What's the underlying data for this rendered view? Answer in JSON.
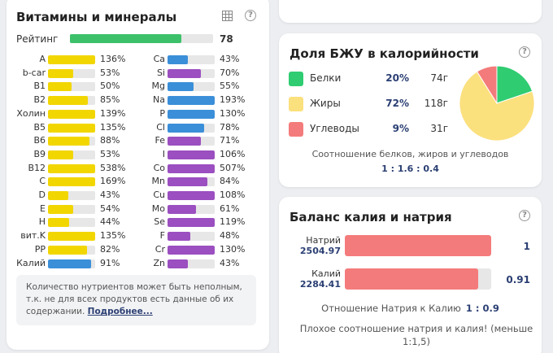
{
  "vitamins": {
    "title": "Витамины и минералы",
    "rating_label": "Рейтинг",
    "rating": 78,
    "left_col": [
      {
        "name": "A",
        "pct": "136%",
        "fill": 1.0,
        "color": "#f2d600"
      },
      {
        "name": "b-car",
        "pct": "53%",
        "fill": 0.53,
        "color": "#f2d600"
      },
      {
        "name": "B1",
        "pct": "50%",
        "fill": 0.5,
        "color": "#f2d600"
      },
      {
        "name": "B2",
        "pct": "85%",
        "fill": 0.85,
        "color": "#f2d600"
      },
      {
        "name": "Холин",
        "pct": "139%",
        "fill": 1.0,
        "color": "#f2d600"
      },
      {
        "name": "B5",
        "pct": "135%",
        "fill": 1.0,
        "color": "#f2d600"
      },
      {
        "name": "B6",
        "pct": "88%",
        "fill": 0.88,
        "color": "#f2d600"
      },
      {
        "name": "B9",
        "pct": "53%",
        "fill": 0.53,
        "color": "#f2d600"
      },
      {
        "name": "B12",
        "pct": "538%",
        "fill": 1.0,
        "color": "#f2d600"
      },
      {
        "name": "C",
        "pct": "169%",
        "fill": 1.0,
        "color": "#f2d600"
      },
      {
        "name": "D",
        "pct": "43%",
        "fill": 0.43,
        "color": "#f2d600"
      },
      {
        "name": "E",
        "pct": "54%",
        "fill": 0.54,
        "color": "#f2d600"
      },
      {
        "name": "H",
        "pct": "44%",
        "fill": 0.44,
        "color": "#f2d600"
      },
      {
        "name": "вит.K",
        "pct": "135%",
        "fill": 1.0,
        "color": "#f2d600"
      },
      {
        "name": "PP",
        "pct": "82%",
        "fill": 0.82,
        "color": "#f2d600"
      },
      {
        "name": "Калий",
        "pct": "91%",
        "fill": 0.91,
        "color": "#3b8fd9"
      }
    ],
    "right_col": [
      {
        "name": "Ca",
        "pct": "43%",
        "fill": 0.43,
        "color": "#3b8fd9"
      },
      {
        "name": "Si",
        "pct": "70%",
        "fill": 0.7,
        "color": "#9b4fc0"
      },
      {
        "name": "Mg",
        "pct": "55%",
        "fill": 0.55,
        "color": "#3b8fd9"
      },
      {
        "name": "Na",
        "pct": "193%",
        "fill": 1.0,
        "color": "#3b8fd9"
      },
      {
        "name": "P",
        "pct": "130%",
        "fill": 1.0,
        "color": "#3b8fd9"
      },
      {
        "name": "Cl",
        "pct": "78%",
        "fill": 0.78,
        "color": "#3b8fd9"
      },
      {
        "name": "Fe",
        "pct": "71%",
        "fill": 0.71,
        "color": "#9b4fc0"
      },
      {
        "name": "I",
        "pct": "106%",
        "fill": 1.0,
        "color": "#9b4fc0"
      },
      {
        "name": "Co",
        "pct": "507%",
        "fill": 1.0,
        "color": "#9b4fc0"
      },
      {
        "name": "Mn",
        "pct": "84%",
        "fill": 0.84,
        "color": "#9b4fc0"
      },
      {
        "name": "Cu",
        "pct": "108%",
        "fill": 1.0,
        "color": "#9b4fc0"
      },
      {
        "name": "Mo",
        "pct": "61%",
        "fill": 0.61,
        "color": "#9b4fc0"
      },
      {
        "name": "Se",
        "pct": "119%",
        "fill": 1.0,
        "color": "#9b4fc0"
      },
      {
        "name": "F",
        "pct": "48%",
        "fill": 0.48,
        "color": "#9b4fc0"
      },
      {
        "name": "Cr",
        "pct": "130%",
        "fill": 1.0,
        "color": "#9b4fc0"
      },
      {
        "name": "Zn",
        "pct": "43%",
        "fill": 0.43,
        "color": "#9b4fc0"
      }
    ],
    "notice_text": "Количество нутриентов может быть неполным, т.к. не для всех продуктов есть данные об их содержании.",
    "notice_link": "Подробнее..."
  },
  "bju": {
    "title": "Доля БЖУ в калорийности",
    "items": [
      {
        "name": "Белки",
        "pct": "20%",
        "grams": "74г",
        "color": "#2fcc71",
        "share": 20
      },
      {
        "name": "Жиры",
        "pct": "72%",
        "grams": "118г",
        "color": "#fbe07e",
        "share": 72
      },
      {
        "name": "Углеводы",
        "pct": "9%",
        "grams": "31г",
        "color": "#f47b7b",
        "share": 9
      }
    ],
    "ratio_label": "Соотношение белков, жиров и углеводов",
    "ratio_value": "1 : 1.6 : 0.4"
  },
  "kna": {
    "title": "Баланс калия и натрия",
    "sodium_label": "Натрий",
    "sodium_value": "2504.97",
    "sodium_ratio": "1",
    "sodium_fill": 1.0,
    "potassium_label": "Калий",
    "potassium_value": "2284.41",
    "potassium_ratio": "0.91",
    "potassium_fill": 0.91,
    "ratio_label": "Отношение Натрия к Калию",
    "ratio_value": "1 : 0.9",
    "warning": "Плохое соотношение натрия и калия! (меньше 1:1,5)"
  }
}
